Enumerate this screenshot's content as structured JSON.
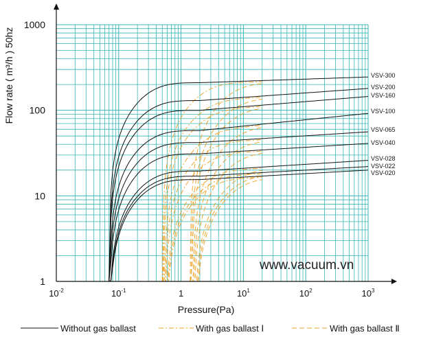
{
  "chart_data": {
    "type": "line",
    "xlabel": "Pressure(Pa)",
    "ylabel": "Flow rate ( m³/h ) 50hz",
    "xscale": "log",
    "yscale": "log",
    "xlim": [
      0.01,
      1000
    ],
    "ylim": [
      1,
      1000
    ],
    "grid": true,
    "x_ticks": [
      {
        "label": "10",
        "exp": "-2"
      },
      {
        "label": "10",
        "exp": "-1"
      },
      {
        "label": "1",
        "exp": ""
      },
      {
        "label": "10",
        "exp": "1"
      },
      {
        "label": "10",
        "exp": "2"
      },
      {
        "label": "10",
        "exp": "3"
      }
    ],
    "y_ticks": [
      "1",
      "10",
      "100",
      "1000"
    ],
    "watermark": "www.vacuum.vn",
    "legend": {
      "placement": "bottom",
      "items": [
        {
          "label": "Without gas ballast",
          "style": "solid",
          "color": "#111111"
        },
        {
          "label": "With gas ballast Ⅰ",
          "style": "dashdot",
          "color": "#f0a020"
        },
        {
          "label": "With gas ballast Ⅱ",
          "style": "dashed",
          "color": "#f0a020"
        }
      ]
    },
    "series": [
      {
        "name": "VSV-300",
        "onset": 0.07,
        "plateau": 210,
        "end": 245
      },
      {
        "name": "VSV-200",
        "onset": 0.07,
        "plateau": 130,
        "end": 180
      },
      {
        "name": "VSV-160",
        "onset": 0.07,
        "plateau": 100,
        "end": 145
      },
      {
        "name": "VSV-100",
        "onset": 0.07,
        "plateau": 58,
        "end": 92
      },
      {
        "name": "VSV-065",
        "onset": 0.07,
        "plateau": 42,
        "end": 56
      },
      {
        "name": "VSV-040",
        "onset": 0.07,
        "plateau": 31,
        "end": 41
      },
      {
        "name": "VSV-028",
        "onset": 0.07,
        "plateau": 19.5,
        "end": 26
      },
      {
        "name": "VSV-022",
        "onset": 0.07,
        "plateau": 17,
        "end": 22
      },
      {
        "name": "VSV-020",
        "onset": 0.07,
        "plateau": 15.5,
        "end": 20
      }
    ],
    "ballast1_onset": 0.5,
    "ballast2_onset": 1.4
  },
  "colors": {
    "grid": "#38b4b4",
    "axis": "#111111",
    "solid": "#111111",
    "ballast": "#f0a020"
  }
}
